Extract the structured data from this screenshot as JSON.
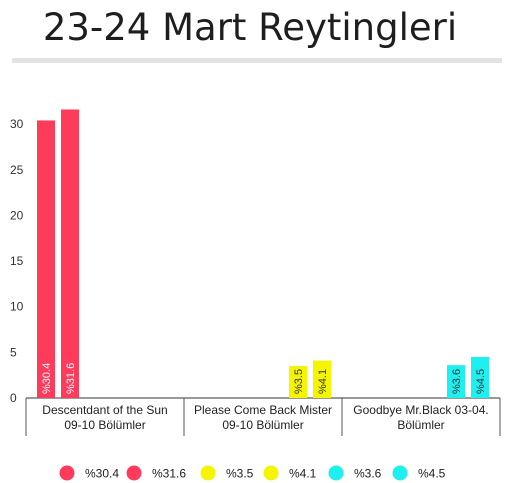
{
  "title": "23-24 Mart Reytingleri",
  "chart_data": {
    "type": "bar",
    "title": "23-24 Mart Reytingleri",
    "xlabel": "",
    "ylabel": "",
    "ylim": [
      0,
      32
    ],
    "yticks": [
      0,
      5,
      10,
      15,
      20,
      25,
      30
    ],
    "grid": false,
    "legend_position": "bottom",
    "categories": [
      [
        "Descentdant of the Sun",
        "09-10 Bölümler"
      ],
      [
        "Please Come Back Mister",
        "09-10 Bölümler"
      ],
      [
        "Goodbye Mr.Black 03-04.",
        "Bölümler"
      ]
    ],
    "series": [
      {
        "name": "%30.4",
        "label": "%30.4",
        "color": "#ff3b5c",
        "category": 0,
        "value": 30.4
      },
      {
        "name": "%31.6",
        "label": "%31.6",
        "color": "#ff3b5c",
        "category": 0,
        "value": 31.6
      },
      {
        "name": "%3.5",
        "label": "%3.5",
        "color": "#f5f500",
        "category": 1,
        "value": 3.5
      },
      {
        "name": "%4.1",
        "label": "%4.1",
        "color": "#f5f500",
        "category": 1,
        "value": 4.1
      },
      {
        "name": "%3.6",
        "label": "%3.6",
        "color": "#1ef0f0",
        "category": 2,
        "value": 3.6
      },
      {
        "name": "%4.5",
        "label": "%4.5",
        "color": "#1ef0f0",
        "category": 2,
        "value": 4.5
      }
    ]
  }
}
